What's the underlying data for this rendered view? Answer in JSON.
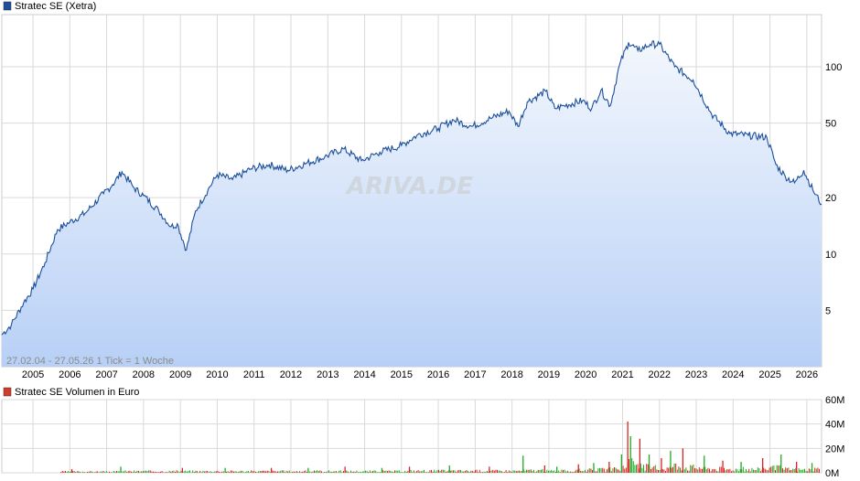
{
  "colors": {
    "price_line": "#1c4f9c",
    "area_top": "#f3f7fd",
    "area_bottom": "#b8d0f6",
    "grid": "#d9d9d9",
    "volume_up": "#22aa22",
    "volume_down": "#dd2222",
    "legend_price": "#1c4f9c",
    "legend_volume": "#d33b2c"
  },
  "watermark": "ARIVA.DE",
  "info_note": "27.02.04 - 27.05.26   1 Tick = 1 Woche",
  "chart_data": [
    {
      "type": "line",
      "title": "Stratec SE (Xetra)",
      "y_scale": "log",
      "ylim": [
        2.5,
        190
      ],
      "y_ticks": [
        5,
        10,
        20,
        50,
        100
      ],
      "y_tick_labels": [
        "5",
        "10",
        "20",
        "50",
        "100"
      ],
      "x_ticks": [
        "2005",
        "2006",
        "2007",
        "2008",
        "2009",
        "2010",
        "2011",
        "2012",
        "2013",
        "2014",
        "2015",
        "2016",
        "2017",
        "2018",
        "2019",
        "2020",
        "2021",
        "2022",
        "2023",
        "2024",
        "2025",
        "2026"
      ],
      "xlim": [
        "2004-02-27",
        "2026-05-27"
      ],
      "grid": true,
      "series": [
        {
          "name": "Stratec SE (Xetra)",
          "x": [
            "2004-02-27",
            "2004-06-01",
            "2004-10-01",
            "2005-01-01",
            "2005-05-01",
            "2005-09-01",
            "2006-01-01",
            "2006-06-01",
            "2006-12-01",
            "2007-03-01",
            "2007-06-01",
            "2007-10-01",
            "2008-01-01",
            "2008-06-01",
            "2008-10-01",
            "2008-12-01",
            "2009-03-01",
            "2009-06-01",
            "2009-10-01",
            "2010-01-01",
            "2010-06-01",
            "2010-12-01",
            "2011-06-01",
            "2011-12-01",
            "2012-06-01",
            "2012-12-01",
            "2013-06-01",
            "2013-12-01",
            "2014-06-01",
            "2015-01-01",
            "2015-06-01",
            "2016-01-01",
            "2016-06-01",
            "2016-12-01",
            "2017-06-01",
            "2017-12-01",
            "2018-03-01",
            "2018-06-01",
            "2018-12-01",
            "2019-03-01",
            "2019-06-01",
            "2019-12-01",
            "2020-03-01",
            "2020-06-01",
            "2020-09-01",
            "2020-12-01",
            "2021-03-01",
            "2021-06-01",
            "2021-10-01",
            "2022-01-01",
            "2022-06-01",
            "2022-12-01",
            "2023-06-01",
            "2023-12-01",
            "2024-06-01",
            "2024-12-01",
            "2025-03-01",
            "2025-06-01",
            "2025-09-01",
            "2025-12-01",
            "2026-03-01",
            "2026-05-27"
          ],
          "values": [
            3.7,
            4.2,
            5.5,
            6.5,
            9.0,
            13.5,
            14.8,
            16.5,
            21.0,
            23.5,
            27.5,
            22.5,
            20.5,
            17.0,
            14.0,
            14.5,
            10.5,
            17.0,
            22.0,
            26.5,
            25.0,
            28.5,
            30.0,
            28.0,
            30.5,
            33.0,
            36.5,
            31.5,
            35.0,
            38.0,
            43.0,
            47.0,
            52.0,
            48.0,
            53.0,
            58.0,
            48.0,
            65.0,
            74.0,
            60.0,
            62.0,
            66.0,
            60.0,
            75.0,
            62.0,
            102.0,
            135.0,
            122.0,
            132.0,
            132.0,
            100.0,
            85.0,
            56.0,
            44.0,
            43.0,
            42.0,
            30.0,
            26.0,
            24.0,
            28.0,
            22.0,
            18.5
          ]
        }
      ]
    },
    {
      "type": "bar",
      "title": "Stratec SE Volumen in Euro",
      "ylim": [
        0,
        60
      ],
      "y_ticks": [
        0,
        20,
        40,
        60
      ],
      "y_tick_labels": [
        "0M",
        "20M",
        "40M",
        "60M"
      ],
      "x_ticks": [
        "2005",
        "2006",
        "2007",
        "2008",
        "2009",
        "2010",
        "2011",
        "2012",
        "2013",
        "2014",
        "2015",
        "2016",
        "2017",
        "2018",
        "2019",
        "2020",
        "2021",
        "2022",
        "2023",
        "2024",
        "2025",
        "2026"
      ],
      "grid": true,
      "series": [
        {
          "x": [
            "2006-01",
            "2007-05",
            "2009-01",
            "2010-03",
            "2011-06",
            "2012-06",
            "2013-06",
            "2014-06",
            "2015-03",
            "2016-04",
            "2017-05",
            "2018-04",
            "2018-11",
            "2019-03",
            "2019-10",
            "2020-03",
            "2020-08",
            "2020-12",
            "2021-02",
            "2021-03",
            "2021-06",
            "2021-09",
            "2022-01",
            "2022-04",
            "2022-08",
            "2023-03",
            "2023-09",
            "2024-03",
            "2024-10",
            "2025-04",
            "2025-09",
            "2026-02"
          ],
          "values": [
            3,
            5,
            4,
            4,
            4,
            4,
            5,
            4,
            5,
            6,
            5,
            14,
            6,
            5,
            7,
            8,
            9,
            15,
            42,
            30,
            28,
            15,
            12,
            18,
            20,
            14,
            10,
            9,
            12,
            15,
            9,
            8
          ]
        }
      ]
    }
  ]
}
